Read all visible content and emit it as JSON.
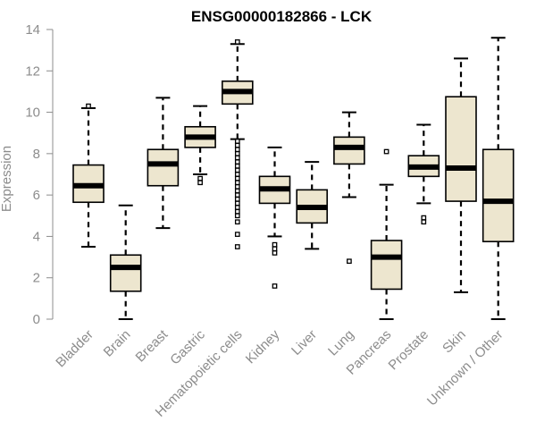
{
  "chart_data": {
    "type": "boxplot",
    "title": "ENSG00000182866 - LCK",
    "xlabel": "",
    "ylabel": "Expression",
    "ylim": [
      0,
      14
    ],
    "yticks": [
      0,
      2,
      4,
      6,
      8,
      10,
      12,
      14
    ],
    "box_fill": "#EDE6CF",
    "box_edge": "#000000",
    "median_color": "#000000",
    "axis_text_color": "#8c8c8c",
    "groups": [
      {
        "name": "Bladder",
        "whisker_low": 3.5,
        "q1": 5.65,
        "median": 6.45,
        "q3": 7.45,
        "whisker_high": 10.2,
        "outliers": [
          10.3
        ]
      },
      {
        "name": "Brain",
        "whisker_low": 0.0,
        "q1": 1.35,
        "median": 2.5,
        "q3": 3.1,
        "whisker_high": 5.5,
        "outliers": []
      },
      {
        "name": "Breast",
        "whisker_low": 4.4,
        "q1": 6.45,
        "median": 7.5,
        "q3": 8.2,
        "whisker_high": 10.7,
        "outliers": []
      },
      {
        "name": "Gastric",
        "whisker_low": 7.0,
        "q1": 8.3,
        "median": 8.8,
        "q3": 9.3,
        "whisker_high": 10.3,
        "outliers": [
          6.8,
          6.6
        ]
      },
      {
        "name": "Hematopoietic cells",
        "whisker_low": 8.7,
        "q1": 10.4,
        "median": 11.0,
        "q3": 11.5,
        "whisker_high": 13.3,
        "outliers": [
          13.4,
          8.6,
          8.4,
          8.2,
          8.0,
          7.8,
          7.6,
          7.4,
          7.2,
          7.0,
          6.8,
          6.6,
          6.4,
          6.2,
          6.0,
          5.8,
          5.6,
          5.4,
          5.2,
          5.0,
          4.7,
          4.1,
          3.5
        ]
      },
      {
        "name": "Kidney",
        "whisker_low": 4.0,
        "q1": 5.6,
        "median": 6.3,
        "q3": 6.9,
        "whisker_high": 8.3,
        "outliers": [
          3.6,
          3.4,
          3.2,
          1.6
        ]
      },
      {
        "name": "Liver",
        "whisker_low": 3.4,
        "q1": 4.65,
        "median": 5.4,
        "q3": 6.25,
        "whisker_high": 7.6,
        "outliers": []
      },
      {
        "name": "Lung",
        "whisker_low": 5.9,
        "q1": 7.5,
        "median": 8.3,
        "q3": 8.8,
        "whisker_high": 10.0,
        "outliers": [
          2.8
        ]
      },
      {
        "name": "Pancreas",
        "whisker_low": 0.0,
        "q1": 1.45,
        "median": 3.0,
        "q3": 3.8,
        "whisker_high": 6.5,
        "outliers": [
          8.1
        ]
      },
      {
        "name": "Prostate",
        "whisker_low": 5.6,
        "q1": 6.9,
        "median": 7.35,
        "q3": 7.9,
        "whisker_high": 9.4,
        "outliers": [
          4.9,
          4.7
        ]
      },
      {
        "name": "Skin",
        "whisker_low": 1.3,
        "q1": 5.7,
        "median": 7.3,
        "q3": 10.75,
        "whisker_high": 12.6,
        "outliers": []
      },
      {
        "name": "Unknown / Other",
        "whisker_low": 0.0,
        "q1": 3.75,
        "median": 5.7,
        "q3": 8.2,
        "whisker_high": 13.6,
        "outliers": []
      }
    ]
  }
}
